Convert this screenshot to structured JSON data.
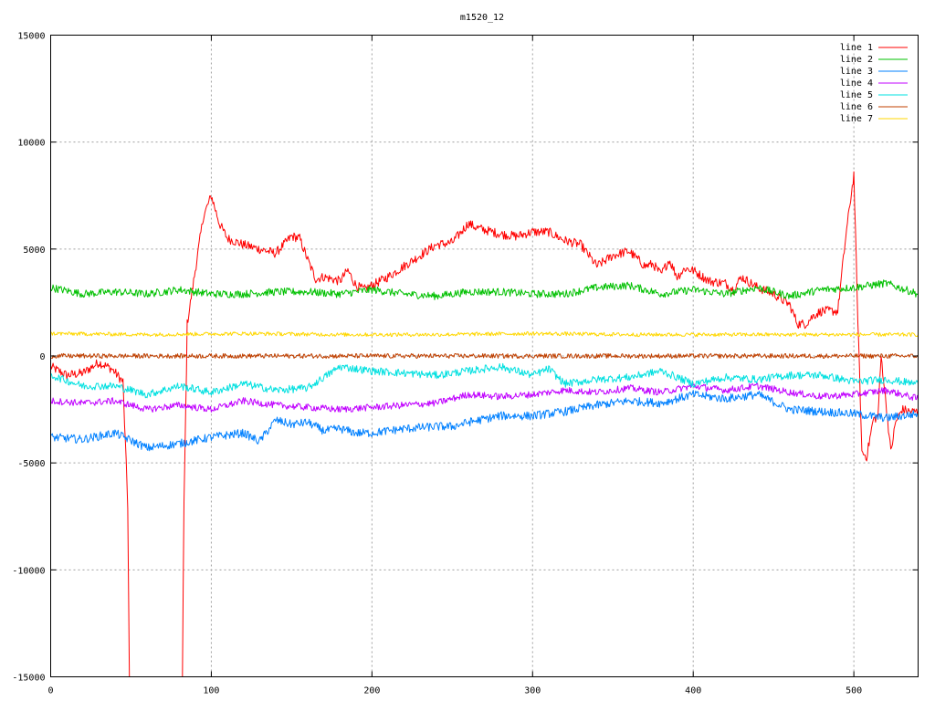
{
  "chart_data": {
    "type": "line",
    "title": "m1520_12",
    "xlabel": "",
    "ylabel": "",
    "xlim": [
      0,
      540
    ],
    "ylim": [
      -15000,
      15000
    ],
    "xticks": [
      0,
      100,
      200,
      300,
      400,
      500
    ],
    "yticks": [
      -15000,
      -10000,
      -5000,
      0,
      5000,
      10000,
      15000
    ],
    "xtick_labels": [
      "0",
      "100",
      "200",
      "300",
      "400",
      "500"
    ],
    "ytick_labels": [
      "-15000",
      "-10000",
      "-5000",
      "0",
      "5000",
      "10000",
      "15000"
    ],
    "grid": true,
    "legend_position": "top-right",
    "series": [
      {
        "name": "line 1",
        "color": "#ff0000",
        "x": [
          0,
          10,
          20,
          30,
          38,
          45,
          48,
          49,
          50,
          82,
          83,
          85,
          90,
          95,
          100,
          105,
          110,
          120,
          130,
          140,
          150,
          155,
          160,
          165,
          170,
          180,
          185,
          190,
          195,
          200,
          210,
          220,
          230,
          240,
          250,
          260,
          265,
          270,
          280,
          290,
          300,
          310,
          320,
          330,
          340,
          350,
          360,
          370,
          375,
          380,
          385,
          390,
          395,
          400,
          410,
          420,
          425,
          430,
          440,
          450,
          460,
          465,
          470,
          475,
          480,
          490,
          495,
          500,
          502,
          505,
          508,
          512,
          515,
          517,
          520,
          523,
          526,
          530,
          535,
          540
        ],
        "y": [
          -500,
          -900,
          -800,
          -300,
          -600,
          -1200,
          -7000,
          -15000,
          -15000,
          -15000,
          -7000,
          1500,
          4000,
          6500,
          7500,
          6200,
          5500,
          5200,
          5000,
          4800,
          5600,
          5500,
          4500,
          3600,
          3700,
          3500,
          4000,
          3300,
          3100,
          3300,
          3700,
          4200,
          4700,
          5200,
          5300,
          6200,
          6000,
          5900,
          5700,
          5600,
          5800,
          5800,
          5400,
          5200,
          4200,
          4700,
          4900,
          4200,
          4300,
          3800,
          4500,
          3700,
          4100,
          4000,
          3500,
          3400,
          3100,
          3700,
          3200,
          2900,
          2400,
          1500,
          1500,
          1900,
          2100,
          2100,
          5600,
          8500,
          3000,
          -4500,
          -4700,
          -3000,
          -2800,
          0,
          -2200,
          -4500,
          -3100,
          -2500,
          -2600,
          -2600
        ]
      },
      {
        "name": "line 2",
        "color": "#00c000",
        "x": [
          0,
          20,
          40,
          60,
          80,
          100,
          120,
          140,
          160,
          180,
          200,
          220,
          240,
          260,
          280,
          300,
          320,
          340,
          360,
          380,
          400,
          420,
          440,
          460,
          480,
          500,
          520,
          540
        ],
        "y": [
          3200,
          2900,
          3000,
          2900,
          3100,
          2900,
          2900,
          3000,
          3000,
          2900,
          3100,
          2900,
          2800,
          3000,
          3000,
          2900,
          2900,
          3200,
          3300,
          2900,
          3100,
          2900,
          3200,
          2800,
          3100,
          3200,
          3400,
          2900
        ]
      },
      {
        "name": "line 3",
        "color": "#0080ff",
        "x": [
          0,
          20,
          40,
          60,
          80,
          100,
          120,
          130,
          140,
          150,
          160,
          170,
          180,
          190,
          200,
          220,
          240,
          250,
          260,
          280,
          300,
          320,
          340,
          360,
          380,
          400,
          420,
          440,
          460,
          480,
          500,
          520,
          540
        ],
        "y": [
          -3800,
          -3900,
          -3600,
          -4300,
          -4100,
          -3800,
          -3600,
          -4000,
          -3000,
          -3200,
          -3100,
          -3500,
          -3400,
          -3600,
          -3600,
          -3400,
          -3300,
          -3300,
          -3100,
          -2800,
          -2800,
          -2600,
          -2300,
          -2100,
          -2200,
          -1800,
          -2000,
          -1800,
          -2500,
          -2600,
          -2700,
          -2900,
          -2700
        ]
      },
      {
        "name": "line 4",
        "color": "#c000ff",
        "x": [
          0,
          20,
          40,
          60,
          80,
          100,
          120,
          140,
          160,
          180,
          200,
          220,
          240,
          260,
          280,
          300,
          320,
          340,
          360,
          380,
          400,
          420,
          440,
          460,
          480,
          500,
          520,
          540
        ],
        "y": [
          -2100,
          -2200,
          -2100,
          -2500,
          -2300,
          -2500,
          -2100,
          -2300,
          -2400,
          -2500,
          -2400,
          -2300,
          -2200,
          -1800,
          -1900,
          -1800,
          -1600,
          -1700,
          -1500,
          -1700,
          -1400,
          -1600,
          -1400,
          -1700,
          -1900,
          -1800,
          -1600,
          -2000
        ]
      },
      {
        "name": "line 5",
        "color": "#00e0e0",
        "x": [
          0,
          20,
          40,
          60,
          80,
          100,
          120,
          140,
          160,
          180,
          200,
          220,
          240,
          260,
          280,
          300,
          310,
          320,
          340,
          360,
          380,
          400,
          420,
          440,
          460,
          480,
          500,
          520,
          540
        ],
        "y": [
          -900,
          -1400,
          -1400,
          -1800,
          -1400,
          -1700,
          -1300,
          -1600,
          -1500,
          -500,
          -700,
          -800,
          -900,
          -700,
          -500,
          -900,
          -600,
          -1300,
          -1100,
          -1000,
          -700,
          -1300,
          -1000,
          -1100,
          -900,
          -900,
          -1200,
          -1100,
          -1300
        ]
      },
      {
        "name": "line 6",
        "color": "#c04000",
        "x": [
          0,
          60,
          120,
          180,
          240,
          300,
          360,
          420,
          480,
          540
        ],
        "y": [
          0,
          0,
          0,
          0,
          0,
          0,
          0,
          0,
          0,
          0
        ]
      },
      {
        "name": "line 7",
        "color": "#ffd700",
        "x": [
          0,
          60,
          120,
          180,
          240,
          300,
          360,
          420,
          480,
          540
        ],
        "y": [
          1050,
          1000,
          1050,
          1000,
          1000,
          1050,
          1000,
          1000,
          1000,
          1000
        ]
      }
    ]
  }
}
